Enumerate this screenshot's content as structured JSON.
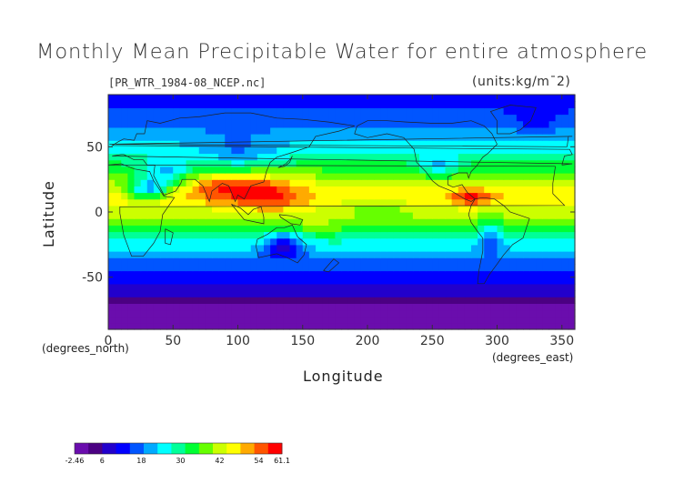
{
  "figure": {
    "title": "Monthly Mean Precipitable Water for entire atmosphere",
    "filename": "[PR_WTR_1984-08_NCEP.nc]",
    "units": "(units:kg/m¯2)"
  },
  "chart_data": {
    "type": "heatmap",
    "xlabel": "Longitude",
    "ylabel": "Latitude",
    "x_units": "(degrees_east)",
    "y_units": "(degrees_north)",
    "xlim": [
      0,
      360
    ],
    "ylim": [
      -90,
      90
    ],
    "x_ticks": [
      0,
      50,
      100,
      150,
      200,
      250,
      300,
      350
    ],
    "y_ticks": [
      -50,
      0,
      50
    ],
    "grid": false,
    "colorbar": {
      "min": -2.46,
      "max": 61.1,
      "tick_labels": [
        "-2.46",
        "6",
        "18",
        "30",
        "42",
        "54",
        "61.1"
      ],
      "tick_values": [
        -2.46,
        6,
        18,
        30,
        42,
        54,
        61.1
      ],
      "colors": [
        "#6a0dad",
        "#4b0082",
        "#2200cc",
        "#0000ff",
        "#0055ff",
        "#00aaff",
        "#00ffff",
        "#00ff99",
        "#00ff33",
        "#66ff00",
        "#ccff00",
        "#ffff00",
        "#ffaa00",
        "#ff5500",
        "#ff0000"
      ]
    },
    "field_description_by_latitude": [
      {
        "lat": 80,
        "value": 14
      },
      {
        "lat": 60,
        "value": 20
      },
      {
        "lat": 40,
        "value": 30
      },
      {
        "lat": 20,
        "value": 45
      },
      {
        "lat": 10,
        "value": 48
      },
      {
        "lat": 0,
        "value": 42
      },
      {
        "lat": -15,
        "value": 32
      },
      {
        "lat": -30,
        "value": 22
      },
      {
        "lat": -45,
        "value": 14
      },
      {
        "lat": -55,
        "value": 10
      },
      {
        "lat": -65,
        "value": 6
      },
      {
        "lat": -75,
        "value": 3
      },
      {
        "lat": -90,
        "value": 1
      }
    ]
  }
}
